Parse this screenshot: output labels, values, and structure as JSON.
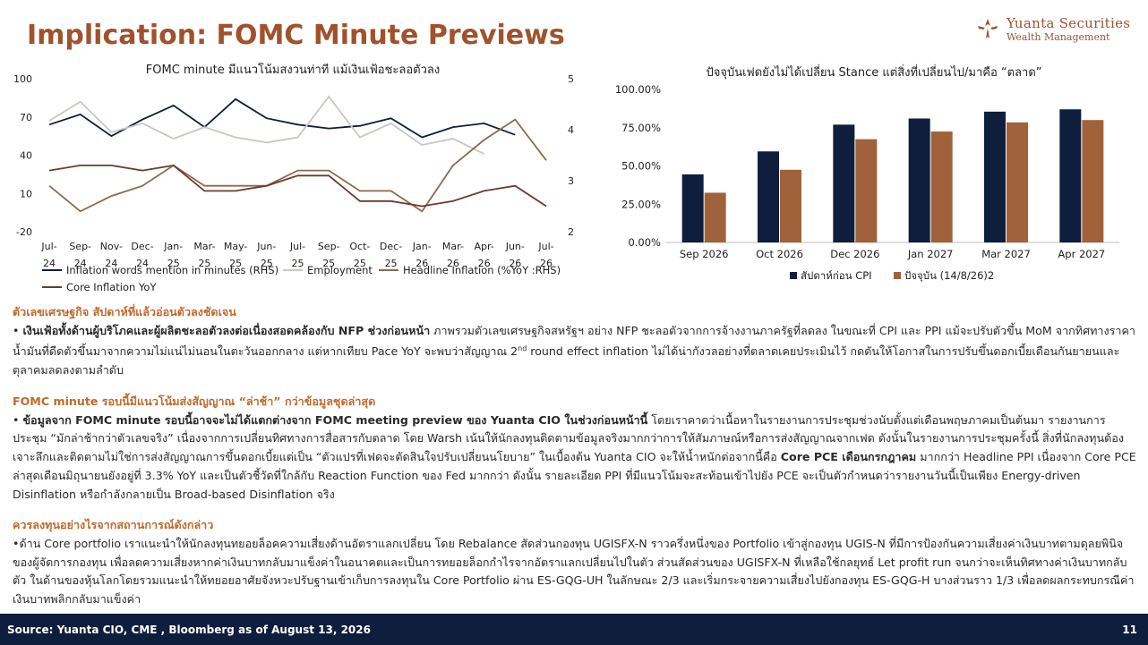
{
  "header": {
    "title": "Implication: FOMC Minute Previews",
    "brand_name": "Yuanta Securities",
    "brand_sub": "Wealth Management"
  },
  "chart_left_meta": {
    "title": "FOMC minute มีแนวโน้มสงวนท่าที แม้เงินเฟ้อชะลอตัวลง"
  },
  "chart_right_meta": {
    "title": "ปัจจุบันเฟดยังไม่ได้เปลี่ยน Stance แต่สิ่งที่เปลี่ยนไป/มาคือ “ตลาด”"
  },
  "chart_data": [
    {
      "type": "line",
      "title": "FOMC minute มีแนวโน้มสงวนท่าที แม้เงินเฟ้อชะลอตัวลง",
      "x": [
        "Jul-24",
        "Sep-24",
        "Nov-24",
        "Dec-24",
        "Jan-25",
        "Mar-25",
        "May-25",
        "Jun-25",
        "Jul-25",
        "Sep-25",
        "Oct-25",
        "Dec-25",
        "Jan-26",
        "Mar-26",
        "Apr-26",
        "Jun-26",
        "Jul-26"
      ],
      "x_labels_line1": [
        "Jul-",
        "Sep-",
        "Nov-",
        "Dec-",
        "Jan-",
        "Mar-",
        "May-",
        "Jun-",
        "Jul-",
        "Sep-",
        "Oct-",
        "Dec-",
        "Jan-",
        "Mar-",
        "Apr-",
        "Jun-",
        "Jul-"
      ],
      "x_labels_line2": [
        "24",
        "24",
        "24",
        "24",
        "25",
        "25",
        "25",
        "25",
        "25",
        "25",
        "25",
        "25",
        "26",
        "26",
        "26",
        "26",
        "26"
      ],
      "y_left": {
        "min": -20,
        "max": 100,
        "ticks": [
          "100",
          "70",
          "40",
          "10",
          "-20"
        ]
      },
      "y_right": {
        "min": 2,
        "max": 5,
        "ticks": [
          "5",
          "4",
          "3",
          "2"
        ]
      },
      "series": [
        {
          "name": "Inflation words mention in minutes (RHS)",
          "axis": "left",
          "color": "#0f1e3c",
          "values": [
            64,
            72,
            55,
            68,
            79,
            62,
            84,
            69,
            64,
            61,
            63,
            69,
            54,
            62,
            65,
            56,
            null
          ]
        },
        {
          "name": "Employment",
          "axis": "left",
          "color": "#c8c8c0",
          "values": [
            67,
            82,
            58,
            65,
            53,
            62,
            54,
            50,
            54,
            86,
            54,
            65,
            48,
            53,
            41,
            null,
            null
          ]
        },
        {
          "name": "Headline Inflation (%YoY :RHS)",
          "axis": "right",
          "color": "#8b6b4a",
          "values": [
            2.9,
            2.4,
            2.7,
            2.9,
            3.3,
            2.9,
            2.9,
            2.9,
            3.2,
            3.2,
            2.8,
            2.8,
            2.4,
            3.3,
            3.8,
            4.2,
            3.4
          ]
        },
        {
          "name": "Core Inflation YoY",
          "axis": "right",
          "color": "#6b3a2e",
          "values": [
            3.2,
            3.3,
            3.3,
            3.2,
            3.3,
            2.8,
            2.8,
            2.9,
            3.1,
            3.1,
            2.6,
            2.6,
            2.5,
            2.6,
            2.8,
            2.9,
            2.5
          ]
        }
      ]
    },
    {
      "type": "bar",
      "title": "ปัจจุบันเฟดยังไม่ได้เปลี่ยน Stance แต่สิ่งที่เปลี่ยนไป/มาคือ “ตลาด”",
      "categories": [
        "Sep 2026",
        "Oct 2026",
        "Dec 2026",
        "Jan 2027",
        "Mar 2027",
        "Apr 2027"
      ],
      "ylim": [
        0,
        100
      ],
      "y_ticks": [
        "0.00%",
        "25.00%",
        "50.00%",
        "75.00%",
        "100.00%"
      ],
      "legend_position": "bottom",
      "series": [
        {
          "name": "สัปดาห์ก่อน CPI",
          "color": "#0f1e3c",
          "values": [
            44.5,
            59.5,
            77.0,
            81.0,
            85.5,
            87.0
          ]
        },
        {
          "name": "ปัจจุบัน (14/8/26)2",
          "color": "#a0623a",
          "values": [
            32.5,
            47.5,
            67.5,
            72.5,
            78.5,
            80.0
          ]
        }
      ]
    }
  ],
  "sections": [
    {
      "heading": "ตัวเลขเศรษฐกิจ สัปดาห์ที่แล้วอ่อนตัวลงชัดเจน",
      "bullet": "• ",
      "bold": "เงินเฟ้อทั้งด้านผู้บริโภคและผู้ผลิตชะลอตัวลงต่อเนื่องสอดคล้องกับ NFP ช่วงก่อนหน้า",
      "text1": " ภาพรวมตัวเลขเศรษฐกิจสหรัฐฯ อย่าง NFP ชะลอตัวจากการจ้างงานภาครัฐที่ลดลง ในขณะที่ CPI และ PPI แม้จะปรับตัวขึ้น MoM จากทิศทางราคาน้ำมันที่ดีดตัวขึ้นมาจากความไม่แน่ไม่นอนในตะวันออกกลาง แต่หากเทียบ Pace YoY จะพบว่าสัญญาณ 2",
      "sup": "nd",
      "text2": " round effect inflation ไม่ได้น่ากังวลอย่างที่ตลาดเคยประเมินไว้ กดดันให้โอกาสในการปรับขึ้นดอกเบี้ยเดือนกันยายนและตุลาคมลดลงตามลำดับ"
    },
    {
      "heading": "FOMC minute รอบนี้มีแนวโน้มส่งสัญญาณ “ล่าช้า” กว่าข้อมูลชุดล่าสุด",
      "bullet": "• ",
      "bold": "ข้อมูลจาก FOMC minute รอบนี้อาจจะไม่ได้แตกต่างจาก FOMC meeting preview ของ Yuanta CIO ในช่วงก่อนหน้านี้",
      "text1": " โดยเราคาดว่าเนื้อหาในรายงานการประชุมช่วงนับตั้งแต่เดือนพฤษภาคมเป็นต้นมา รายงานการประชุม “มักล่าช้ากว่าตัวเลขจริง” เนื่องจากการเปลี่ยนทิศทางการสื่อสารกับตลาด โดย Warsh เน้นให้นักลงทุนติดตามข้อมูลจริงมากกว่าการให้สัมภาษณ์หรือการส่งสัญญาณจากเฟด ดังนั้นในรายงานการประชุมครั้งนี้ สิ่งที่นักลงทุนต้องเจาะลึกและติดตามไม่ใช่การส่งสัญญาณการขึ้นดอกเบี้ยแต่เป็น “ตัวแปรที่เฟดจะตัดสินใจปรับเปลี่ยนนโยบาย” ในเบื้องต้น Yuanta CIO จะให้น้ำหนักต่อจากนี้คือ ",
      "bold2": "Core PCE เดือนกรกฎาคม",
      "text2": " มากกว่า Headline PPI เนื่องจาก Core PCE ล่าสุดเดือนมิถุนายนยังอยู่ที่ 3.3% YoY และเป็นตัวชี้วัดที่ใกล้กับ Reaction Function ของ Fed มากกว่า ดังนั้น รายละเอียด PPI ที่มีแนวโน้มจะสะท้อนเข้าไปยัง PCE จะเป็นตัวกำหนดว่ารายงานวันนี้เป็นเพียง Energy-driven Disinflation หรือกำลังกลายเป็น Broad-based Disinflation จริง"
    },
    {
      "heading": "ควรลงทุนอย่างไรจากสถานการณ์ดังกล่าว",
      "bullet": "•",
      "text1": "ด้าน Core portfolio เราแนะนำให้นักลงทุนทยอยล็อคความเสี่ยงด้านอัตราแลกเปลี่ยน โดย Rebalance สัดส่วนกองทุน UGISFX-N ราวครึ่งหนึ่งของ Portfolio เข้าสู่กองทุน UGIS-N ที่มีการป้องกันความเสี่ยงค่าเงินบาทตามดุลยพินิจของผู้จัดการกองทุน เพื่อลดความเสี่ยงหากค่าเงินบาทกลับมาแข็งค่าในอนาคตและเป็นการทยอยล็อกกำไรจากอัตราแลกเปลี่ยนไปในตัว ส่วนสัดส่วนของ UGISFX-N ที่เหลือใช้กลยุทธ์ Let profit run จนกว่าจะเห็นทิศทางค่าเงินบาทกลับตัว ในด้านของหุ้นโลกโดยรวมแนะนำให้ทยอยอาศัยจังหวะปรับฐานเข้าเก็บการลงทุนใน Core Portfolio ผ่าน ES-GQG-UH ในลักษณะ 2/3 และเริ่มกระจายความเสี่ยงไปยังกองทุน ES-GQG-H บางส่วนราว 1/3 เพื่อลดผลกระทบกรณีค่าเงินบาทพลิกกลับมาแข็งค่า"
    }
  ],
  "footer": {
    "source": "Source: Yuanta CIO, CME , Bloomberg as of August 13, 2026",
    "page": "11"
  }
}
